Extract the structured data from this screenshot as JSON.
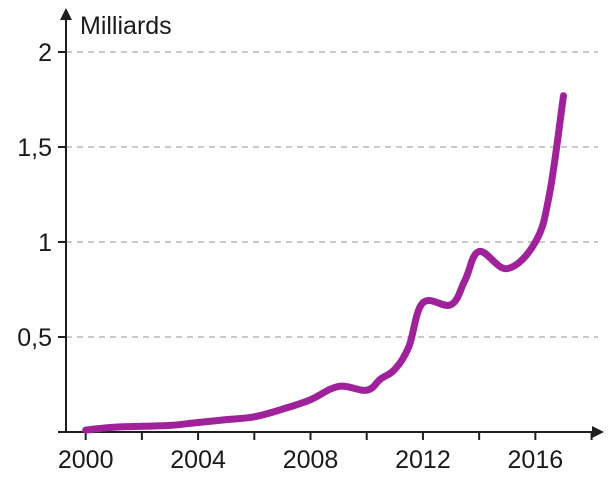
{
  "chart_data": {
    "type": "line",
    "title": "",
    "ylabel": "Milliards",
    "xlabel": "",
    "x_ticks": [
      2000,
      2004,
      2008,
      2012,
      2016
    ],
    "x_tick_labels": [
      "2000",
      "2004",
      "2008",
      "2012",
      "2016"
    ],
    "y_ticks": [
      0.5,
      1,
      1.5,
      2
    ],
    "y_tick_labels": [
      "0,5",
      "1",
      "1,5",
      "2"
    ],
    "xlim": [
      1999.3,
      2018.3
    ],
    "ylim": [
      0,
      2.2
    ],
    "grid": "horizontal dashed",
    "series": [
      {
        "color": "#a0229a",
        "x": [
          2000,
          2001,
          2002,
          2003,
          2004,
          2005,
          2006,
          2007,
          2008,
          2009,
          2010,
          2010.5,
          2011,
          2011.5,
          2012,
          2013,
          2013.5,
          2014,
          2015,
          2016,
          2016.5,
          2017
        ],
        "values": [
          0.01,
          0.025,
          0.03,
          0.035,
          0.05,
          0.065,
          0.08,
          0.12,
          0.17,
          0.24,
          0.22,
          0.28,
          0.33,
          0.45,
          0.68,
          0.67,
          0.8,
          0.95,
          0.86,
          1.0,
          1.25,
          1.77
        ]
      }
    ]
  }
}
